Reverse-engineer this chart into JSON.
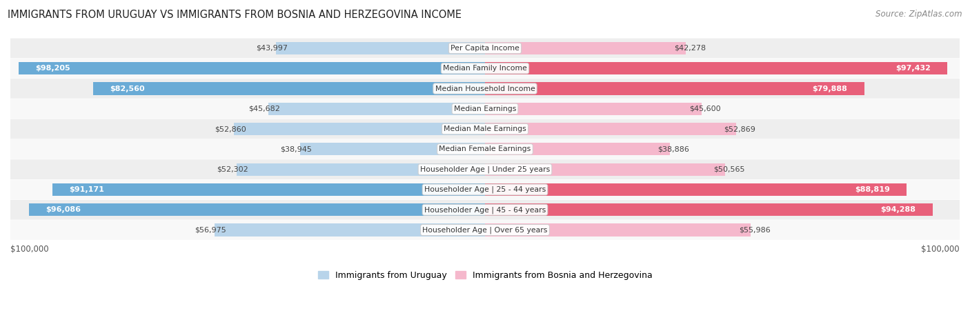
{
  "title": "IMMIGRANTS FROM URUGUAY VS IMMIGRANTS FROM BOSNIA AND HERZEGOVINA INCOME",
  "source": "Source: ZipAtlas.com",
  "categories": [
    "Per Capita Income",
    "Median Family Income",
    "Median Household Income",
    "Median Earnings",
    "Median Male Earnings",
    "Median Female Earnings",
    "Householder Age | Under 25 years",
    "Householder Age | 25 - 44 years",
    "Householder Age | 45 - 64 years",
    "Householder Age | Over 65 years"
  ],
  "uruguay_values": [
    43997,
    98205,
    82560,
    45682,
    52860,
    38945,
    52302,
    91171,
    96086,
    56975
  ],
  "bosnia_values": [
    42278,
    97432,
    79888,
    45600,
    52869,
    38886,
    50565,
    88819,
    94288,
    55986
  ],
  "uruguay_labels": [
    "$43,997",
    "$98,205",
    "$82,560",
    "$45,682",
    "$52,860",
    "$38,945",
    "$52,302",
    "$91,171",
    "$96,086",
    "$56,975"
  ],
  "bosnia_labels": [
    "$42,278",
    "$97,432",
    "$79,888",
    "$45,600",
    "$52,869",
    "$38,886",
    "$50,565",
    "$88,819",
    "$94,288",
    "$55,986"
  ],
  "max_value": 100000,
  "uruguay_color_light": "#b8d4ea",
  "uruguay_color_dark": "#6aabd6",
  "bosnia_color_light": "#f5b8cc",
  "bosnia_color_dark": "#e8607a",
  "row_bg_color": "#eeeeee",
  "row_bg_alt_color": "#f8f8f8",
  "legend_uruguay": "Immigrants from Uruguay",
  "legend_bosnia": "Immigrants from Bosnia and Herzegovina",
  "x_axis_label_left": "$100,000",
  "x_axis_label_right": "$100,000",
  "white_label_threshold": 65000,
  "label_outside_threshold": 50000
}
